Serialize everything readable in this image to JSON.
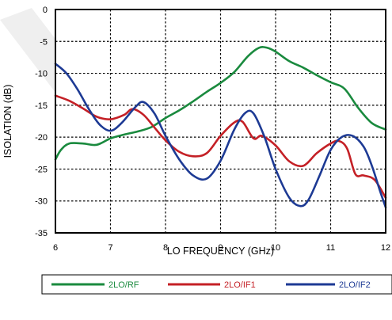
{
  "chart_data": {
    "type": "line",
    "xlabel": "LO FREQUENCY (GHz)",
    "ylabel": "ISOLATION (dB)",
    "xlim": [
      6,
      12
    ],
    "ylim": [
      -35,
      0
    ],
    "x_ticks": [
      6,
      7,
      8,
      9,
      10,
      11,
      12
    ],
    "y_ticks": [
      0,
      -5,
      -10,
      -15,
      -20,
      -25,
      -30,
      -35
    ],
    "grid": true,
    "legend_position": "bottom",
    "series": [
      {
        "name": "2LO/RF",
        "color": "#1a8a3e",
        "points": [
          [
            6,
            -23.5
          ],
          [
            6.1,
            -22
          ],
          [
            6.25,
            -21
          ],
          [
            6.5,
            -21
          ],
          [
            6.75,
            -21.2
          ],
          [
            7,
            -20.2
          ],
          [
            7.25,
            -19.6
          ],
          [
            7.5,
            -19.1
          ],
          [
            7.75,
            -18.4
          ],
          [
            8,
            -17
          ],
          [
            8.25,
            -15.8
          ],
          [
            8.5,
            -14.4
          ],
          [
            8.75,
            -12.9
          ],
          [
            9,
            -11.5
          ],
          [
            9.25,
            -9.8
          ],
          [
            9.5,
            -7.3
          ],
          [
            9.7,
            -6
          ],
          [
            9.85,
            -6
          ],
          [
            10,
            -6.6
          ],
          [
            10.25,
            -8.1
          ],
          [
            10.5,
            -9.1
          ],
          [
            10.75,
            -10.3
          ],
          [
            11,
            -11.4
          ],
          [
            11.25,
            -12.4
          ],
          [
            11.5,
            -15.4
          ],
          [
            11.75,
            -17.8
          ],
          [
            12,
            -18.8
          ]
        ]
      },
      {
        "name": "2LO/IF1",
        "color": "#c42026",
        "points": [
          [
            6,
            -13.5
          ],
          [
            6.25,
            -14.3
          ],
          [
            6.5,
            -15.5
          ],
          [
            6.75,
            -16.8
          ],
          [
            7,
            -17.2
          ],
          [
            7.25,
            -16.5
          ],
          [
            7.4,
            -15.6
          ],
          [
            7.6,
            -16.5
          ],
          [
            7.8,
            -18.5
          ],
          [
            8,
            -20.5
          ],
          [
            8.25,
            -22.3
          ],
          [
            8.5,
            -23
          ],
          [
            8.75,
            -22.5
          ],
          [
            9,
            -19.8
          ],
          [
            9.25,
            -17.7
          ],
          [
            9.4,
            -17.6
          ],
          [
            9.6,
            -20.2
          ],
          [
            9.75,
            -19.8
          ],
          [
            10,
            -21.3
          ],
          [
            10.25,
            -23.8
          ],
          [
            10.5,
            -24.5
          ],
          [
            10.75,
            -22.5
          ],
          [
            11,
            -21
          ],
          [
            11.15,
            -20.6
          ],
          [
            11.3,
            -21.8
          ],
          [
            11.45,
            -25.8
          ],
          [
            11.6,
            -26
          ],
          [
            11.8,
            -26.7
          ],
          [
            12,
            -29.5
          ]
        ]
      },
      {
        "name": "2LO/IF2",
        "color": "#1d3a94",
        "points": [
          [
            6,
            -8.5
          ],
          [
            6.2,
            -10
          ],
          [
            6.4,
            -12.5
          ],
          [
            6.6,
            -15.5
          ],
          [
            6.8,
            -18
          ],
          [
            7,
            -19
          ],
          [
            7.2,
            -17.8
          ],
          [
            7.45,
            -15.3
          ],
          [
            7.6,
            -14.5
          ],
          [
            7.8,
            -16.3
          ],
          [
            8,
            -19.8
          ],
          [
            8.25,
            -23.5
          ],
          [
            8.5,
            -26
          ],
          [
            8.75,
            -26.5
          ],
          [
            9,
            -23.7
          ],
          [
            9.25,
            -18.8
          ],
          [
            9.45,
            -16.2
          ],
          [
            9.6,
            -16.3
          ],
          [
            9.8,
            -20
          ],
          [
            10,
            -25
          ],
          [
            10.25,
            -29.5
          ],
          [
            10.45,
            -30.8
          ],
          [
            10.6,
            -29.8
          ],
          [
            10.8,
            -26
          ],
          [
            11,
            -22
          ],
          [
            11.2,
            -20
          ],
          [
            11.4,
            -19.8
          ],
          [
            11.6,
            -21.5
          ],
          [
            11.75,
            -24.5
          ],
          [
            11.9,
            -28.5
          ],
          [
            12,
            -31
          ]
        ]
      }
    ]
  }
}
